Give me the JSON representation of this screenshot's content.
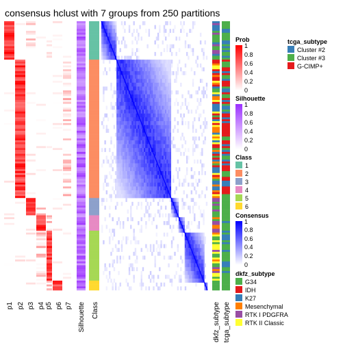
{
  "chart_data": {
    "type": "heatmap",
    "title": "consensus hclust with 7 groups from 250 partitions",
    "membership_columns": [
      "p1",
      "p2",
      "p3",
      "p4",
      "p5",
      "p6",
      "p7"
    ],
    "silhouette_label": "Silhouette",
    "class_label": "Class",
    "annotation_labels": [
      "dkfz_subtype",
      "tcga_subtype"
    ],
    "groups": [
      {
        "class": 1,
        "n_samples": 20
      },
      {
        "class": 2,
        "n_samples": 72
      },
      {
        "class": 3,
        "n_samples": 9
      },
      {
        "class": 4,
        "n_samples": 8
      },
      {
        "class": 5,
        "n_samples": 26
      },
      {
        "class": 6,
        "n_samples": 5
      }
    ],
    "legends": {
      "prob": {
        "title": "Prob",
        "ticks": [
          "1",
          "0.8",
          "0.6",
          "0.4",
          "0.2",
          "0"
        ],
        "color_low": "#ffffff",
        "color_high": "#ff0000"
      },
      "silhouette": {
        "title": "Silhouette",
        "ticks": [
          "1",
          "0.8",
          "0.6",
          "0.4",
          "0.2",
          "0"
        ],
        "color_low": "#ffffff",
        "color_high": "#9b30ff"
      },
      "class": {
        "title": "Class",
        "items": [
          {
            "label": "1",
            "color": "#66c2a5"
          },
          {
            "label": "2",
            "color": "#fc8d62"
          },
          {
            "label": "3",
            "color": "#8da0cb"
          },
          {
            "label": "4",
            "color": "#e78ac3"
          },
          {
            "label": "5",
            "color": "#a6d854"
          },
          {
            "label": "6",
            "color": "#ffd92f"
          }
        ]
      },
      "consensus": {
        "title": "Consensus",
        "ticks": [
          "1",
          "0.8",
          "0.6",
          "0.4",
          "0.2",
          "0"
        ],
        "color_low": "#ffffff",
        "color_high": "#0000ff"
      },
      "dkfz_subtype": {
        "title": "dkfz_subtype",
        "items": [
          {
            "label": "G34",
            "color": "#4daf4a"
          },
          {
            "label": "IDH",
            "color": "#e41a1c"
          },
          {
            "label": "K27",
            "color": "#377eb8"
          },
          {
            "label": "Mesenchymal",
            "color": "#ff7f00"
          },
          {
            "label": "RTK I PDGFRA",
            "color": "#984ea3"
          },
          {
            "label": "RTK II Classic",
            "color": "#ffff33"
          }
        ]
      },
      "tcga_subtype": {
        "title": "tcga_subtype",
        "items": [
          {
            "label": "Cluster #2",
            "color": "#377eb8"
          },
          {
            "label": "Cluster #3",
            "color": "#4daf4a"
          },
          {
            "label": "G-CIMP+",
            "color": "#e41a1c"
          }
        ]
      }
    }
  }
}
